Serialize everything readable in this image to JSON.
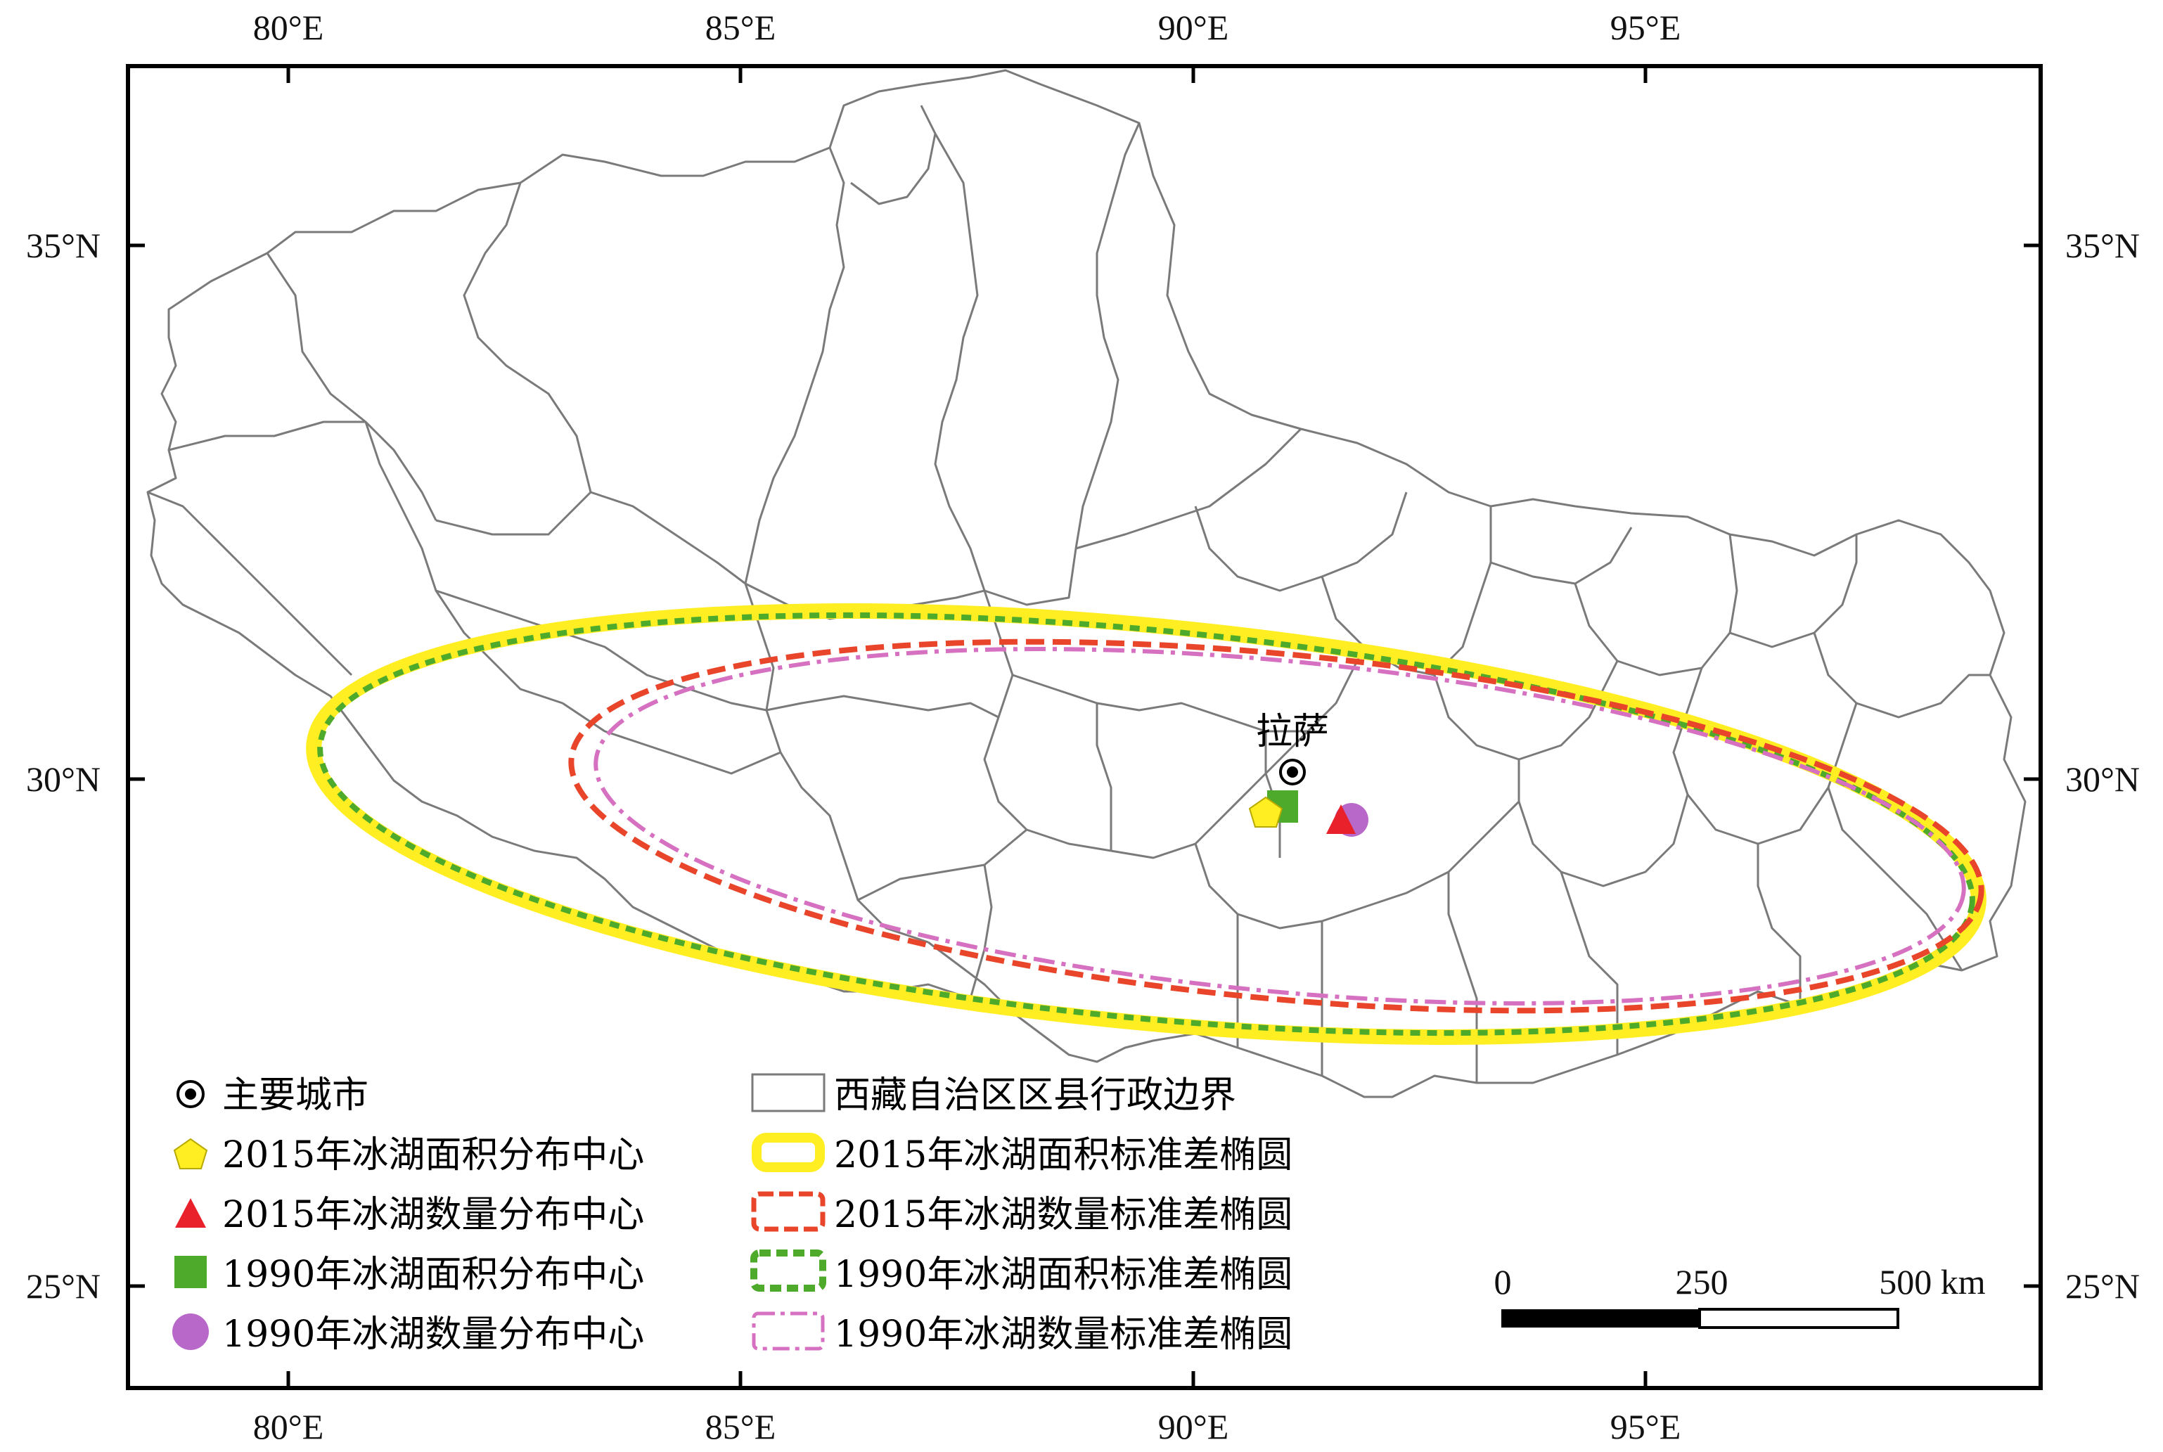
{
  "map": {
    "lon_ticks": [
      "80°E",
      "85°E",
      "90°E",
      "95°E"
    ],
    "lat_ticks": [
      "35°N",
      "30°N",
      "25°N"
    ],
    "city": {
      "name": "拉萨",
      "icon": "city-dot-icon"
    },
    "scale_bar": {
      "labels": [
        "0",
        "250",
        "500 km"
      ]
    },
    "colors": {
      "area_2015": "#ffee22",
      "count_2015": "#e8452a",
      "area_1990": "#4daa2a",
      "count_1990": "#d670c0",
      "count_1990_point": "#b868c8",
      "boundary": "#7a7a7a"
    }
  },
  "legend": {
    "items_left": [
      {
        "label": "主要城市",
        "icon": "city-dot-icon"
      },
      {
        "label": "2015年冰湖面积分布中心",
        "icon": "yellow-pentagon-icon"
      },
      {
        "label": "2015年冰湖数量分布中心",
        "icon": "red-triangle-icon"
      },
      {
        "label": "1990年冰湖面积分布中心",
        "icon": "green-square-icon"
      },
      {
        "label": "1990年冰湖数量分布中心",
        "icon": "purple-circle-icon"
      }
    ],
    "items_right": [
      {
        "label": "西藏自治区区县行政边界",
        "icon": "boundary-box-icon"
      },
      {
        "label": "2015年冰湖面积标准差椭圆",
        "icon": "yellow-ellipse-icon"
      },
      {
        "label": "2015年冰湖数量标准差椭圆",
        "icon": "red-dashed-ellipse-icon"
      },
      {
        "label": "1990年冰湖面积标准差椭圆",
        "icon": "green-dashed-ellipse-icon"
      },
      {
        "label": "1990年冰湖数量标准差椭圆",
        "icon": "pink-dashdot-ellipse-icon"
      }
    ]
  }
}
